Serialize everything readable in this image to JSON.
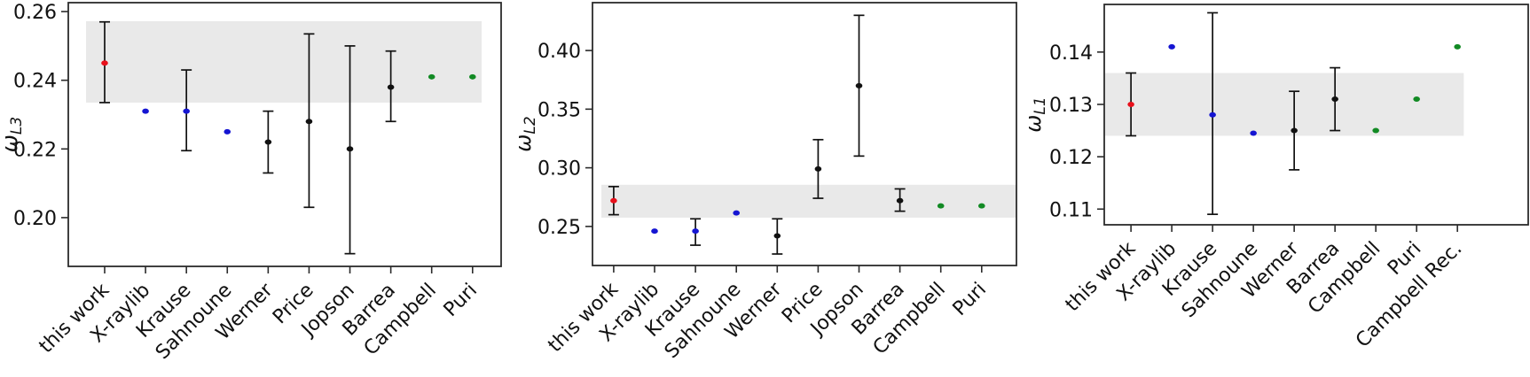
{
  "figure": {
    "description": "Comparison of L-subshell fluorescence yields from this work versus literature values",
    "panels": [
      "omega_L3",
      "omega_L2",
      "omega_L1"
    ]
  },
  "colors": {
    "this_work": "#e8101b",
    "database": "#1515d2",
    "experiment": "#111111",
    "recommended": "#128a24",
    "error_bar": "#111111",
    "band": "#e9e9e9",
    "spine": "#2b2b2b",
    "background": "#ffffff"
  },
  "chart_data": [
    {
      "type": "scatter",
      "title": "",
      "xlabel": "",
      "ylabel_symbol": "ω",
      "ylabel_subscript": "L3",
      "ylim": [
        0.1858,
        0.2626
      ],
      "yticks": [
        0.2,
        0.22,
        0.24,
        0.26
      ],
      "ytick_labels": [
        "0.20",
        "0.22",
        "0.24",
        "0.26"
      ],
      "grid": false,
      "legend": "none",
      "band": {
        "lo": 0.2335,
        "hi": 0.2572
      },
      "points": [
        {
          "label": "this work",
          "value": 0.245,
          "err_lo": 0.2335,
          "err_hi": 0.257,
          "color_key": "this_work"
        },
        {
          "label": "X-raylib",
          "value": 0.231,
          "err_lo": null,
          "err_hi": null,
          "color_key": "database"
        },
        {
          "label": "Krause",
          "value": 0.231,
          "err_lo": 0.2195,
          "err_hi": 0.243,
          "color_key": "database"
        },
        {
          "label": "Sahnoune",
          "value": 0.225,
          "err_lo": null,
          "err_hi": null,
          "color_key": "database"
        },
        {
          "label": "Werner",
          "value": 0.222,
          "err_lo": 0.213,
          "err_hi": 0.231,
          "color_key": "experiment"
        },
        {
          "label": "Price",
          "value": 0.228,
          "err_lo": 0.203,
          "err_hi": 0.2535,
          "color_key": "experiment"
        },
        {
          "label": "Jopson",
          "value": 0.22,
          "err_lo": 0.1895,
          "err_hi": 0.25,
          "color_key": "experiment"
        },
        {
          "label": "Barrea",
          "value": 0.238,
          "err_lo": 0.228,
          "err_hi": 0.2485,
          "color_key": "experiment"
        },
        {
          "label": "Campbell",
          "value": 0.241,
          "err_lo": null,
          "err_hi": null,
          "color_key": "recommended"
        },
        {
          "label": "Puri",
          "value": 0.241,
          "err_lo": null,
          "err_hi": null,
          "color_key": "recommended"
        }
      ]
    },
    {
      "type": "scatter",
      "title": "",
      "xlabel": "",
      "ylabel_symbol": "ω",
      "ylabel_subscript": "L2",
      "ylim": [
        0.2167,
        0.4408
      ],
      "yticks": [
        0.25,
        0.3,
        0.35,
        0.4
      ],
      "ytick_labels": [
        "0.25",
        "0.30",
        "0.35",
        "0.40"
      ],
      "grid": false,
      "legend": "none",
      "band": {
        "lo": 0.2575,
        "hi": 0.2855
      },
      "points": [
        {
          "label": "this work",
          "value": 0.272,
          "err_lo": 0.26,
          "err_hi": 0.284,
          "color_key": "this_work"
        },
        {
          "label": "X-raylib",
          "value": 0.246,
          "err_lo": null,
          "err_hi": null,
          "color_key": "database"
        },
        {
          "label": "Krause",
          "value": 0.246,
          "err_lo": 0.234,
          "err_hi": 0.2565,
          "color_key": "database"
        },
        {
          "label": "Sahnoune",
          "value": 0.2615,
          "err_lo": null,
          "err_hi": null,
          "color_key": "database"
        },
        {
          "label": "Werner",
          "value": 0.242,
          "err_lo": 0.2265,
          "err_hi": 0.2565,
          "color_key": "experiment"
        },
        {
          "label": "Price",
          "value": 0.299,
          "err_lo": 0.274,
          "err_hi": 0.324,
          "color_key": "experiment"
        },
        {
          "label": "Jopson",
          "value": 0.37,
          "err_lo": 0.31,
          "err_hi": 0.43,
          "color_key": "experiment"
        },
        {
          "label": "Barrea",
          "value": 0.272,
          "err_lo": 0.263,
          "err_hi": 0.282,
          "color_key": "experiment"
        },
        {
          "label": "Campbell",
          "value": 0.2675,
          "err_lo": null,
          "err_hi": null,
          "color_key": "recommended"
        },
        {
          "label": "Puri",
          "value": 0.2675,
          "err_lo": null,
          "err_hi": null,
          "color_key": "recommended"
        }
      ]
    },
    {
      "type": "scatter",
      "title": "",
      "xlabel": "",
      "ylabel_symbol": "ω",
      "ylabel_subscript": "L1",
      "ylim": [
        0.107,
        0.1491
      ],
      "yticks": [
        0.11,
        0.12,
        0.13,
        0.14
      ],
      "ytick_labels": [
        "0.11",
        "0.12",
        "0.13",
        "0.14"
      ],
      "grid": false,
      "legend": "none",
      "band": {
        "lo": 0.124,
        "hi": 0.136
      },
      "points": [
        {
          "label": "this work",
          "value": 0.13,
          "err_lo": 0.124,
          "err_hi": 0.136,
          "color_key": "this_work"
        },
        {
          "label": "X-raylib",
          "value": 0.141,
          "err_lo": null,
          "err_hi": null,
          "color_key": "database"
        },
        {
          "label": "Krause",
          "value": 0.128,
          "err_lo": 0.109,
          "err_hi": 0.1475,
          "color_key": "database"
        },
        {
          "label": "Sahnoune",
          "value": 0.1245,
          "err_lo": null,
          "err_hi": null,
          "color_key": "database"
        },
        {
          "label": "Werner",
          "value": 0.125,
          "err_lo": 0.1175,
          "err_hi": 0.1325,
          "color_key": "experiment"
        },
        {
          "label": "Barrea",
          "value": 0.131,
          "err_lo": 0.125,
          "err_hi": 0.137,
          "color_key": "experiment"
        },
        {
          "label": "Campbell",
          "value": 0.125,
          "err_lo": null,
          "err_hi": null,
          "color_key": "recommended"
        },
        {
          "label": "Puri",
          "value": 0.131,
          "err_lo": null,
          "err_hi": null,
          "color_key": "recommended"
        },
        {
          "label": "Campbell Rec.",
          "value": 0.141,
          "err_lo": null,
          "err_hi": null,
          "color_key": "recommended"
        }
      ]
    }
  ]
}
